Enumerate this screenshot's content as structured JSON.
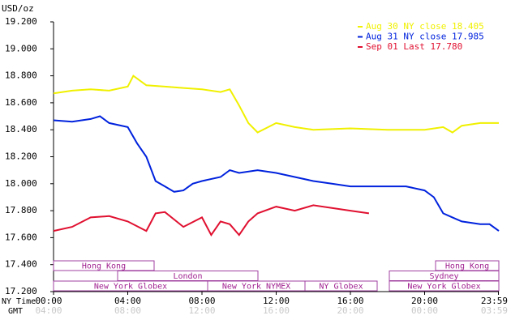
{
  "chart_data": {
    "type": "line",
    "ylabel": "USD/oz",
    "xlabel": "NY Time",
    "x2label": "GMT",
    "xlim": [
      0,
      24
    ],
    "ylim": [
      17.2,
      19.2
    ],
    "yticks": [
      {
        "value": 17.2,
        "label": "17.200"
      },
      {
        "value": 17.4,
        "label": "17.400"
      },
      {
        "value": 17.6,
        "label": "17.600"
      },
      {
        "value": 17.8,
        "label": "17.800"
      },
      {
        "value": 18.0,
        "label": "18.000"
      },
      {
        "value": 18.2,
        "label": "18.200"
      },
      {
        "value": 18.4,
        "label": "18.400"
      },
      {
        "value": 18.6,
        "label": "18.600"
      },
      {
        "value": 18.8,
        "label": "18.800"
      },
      {
        "value": 19.0,
        "label": "19.000"
      },
      {
        "value": 19.2,
        "label": "19.200"
      }
    ],
    "xticks": [
      {
        "value": 0,
        "label": "00:00"
      },
      {
        "value": 4,
        "label": "04:00"
      },
      {
        "value": 8,
        "label": "08:00"
      },
      {
        "value": 12,
        "label": "12:00"
      },
      {
        "value": 16,
        "label": "16:00"
      },
      {
        "value": 20,
        "label": "20:00"
      },
      {
        "value": 23.98,
        "label": "23:59"
      }
    ],
    "x2tick_labels": [
      "04:00",
      "08:00",
      "12:00",
      "16:00",
      "20:00",
      "00:00",
      "03:59"
    ],
    "legend": "upper right",
    "series": [
      {
        "name": "Aug 30 NY close 18.405",
        "color": "#f0f000",
        "x": [
          0,
          1,
          2,
          3,
          4,
          4.3,
          5,
          6,
          7,
          8,
          9,
          9.5,
          10,
          10.5,
          11,
          12,
          13,
          14,
          16,
          18,
          20,
          21,
          21.5,
          22,
          23,
          24
        ],
        "values": [
          18.67,
          18.69,
          18.7,
          18.69,
          18.72,
          18.8,
          18.73,
          18.72,
          18.71,
          18.7,
          18.68,
          18.7,
          18.58,
          18.45,
          18.38,
          18.45,
          18.42,
          18.4,
          18.41,
          18.4,
          18.4,
          18.42,
          18.38,
          18.43,
          18.45,
          18.45
        ]
      },
      {
        "name": "Aug 31 NY close 17.985",
        "color": "#0022dd",
        "x": [
          0,
          1,
          2,
          2.5,
          3,
          4,
          4.5,
          5,
          5.5,
          6,
          6.5,
          7,
          7.5,
          8,
          9,
          9.5,
          10,
          11,
          12,
          13,
          14,
          15,
          16,
          17,
          18,
          19,
          20,
          20.5,
          21,
          21.5,
          22,
          23,
          23.5,
          24
        ],
        "values": [
          18.47,
          18.46,
          18.48,
          18.5,
          18.45,
          18.42,
          18.3,
          18.2,
          18.02,
          17.98,
          17.94,
          17.95,
          18.0,
          18.02,
          18.05,
          18.1,
          18.08,
          18.1,
          18.08,
          18.05,
          18.02,
          18.0,
          17.98,
          17.98,
          17.98,
          17.98,
          17.95,
          17.9,
          17.78,
          17.75,
          17.72,
          17.7,
          17.7,
          17.65
        ]
      },
      {
        "name": "Sep 01 Last 17.780",
        "color": "#e01030",
        "x": [
          0,
          1,
          2,
          3,
          4,
          5,
          5.5,
          6,
          7,
          8,
          8.5,
          9,
          9.5,
          10,
          10.5,
          11,
          12,
          13,
          14,
          15,
          16,
          17
        ],
        "values": [
          17.65,
          17.68,
          17.75,
          17.76,
          17.72,
          17.65,
          17.78,
          17.79,
          17.68,
          17.75,
          17.62,
          17.72,
          17.7,
          17.62,
          17.72,
          17.78,
          17.83,
          17.8,
          17.84,
          17.82,
          17.8,
          17.78
        ]
      }
    ],
    "sessions": [
      "Hong Kong",
      "London",
      "New York Globex",
      "New York NYMEX",
      "NY Globex",
      "Sydney",
      "Hong Kong",
      "New York Globex"
    ]
  }
}
